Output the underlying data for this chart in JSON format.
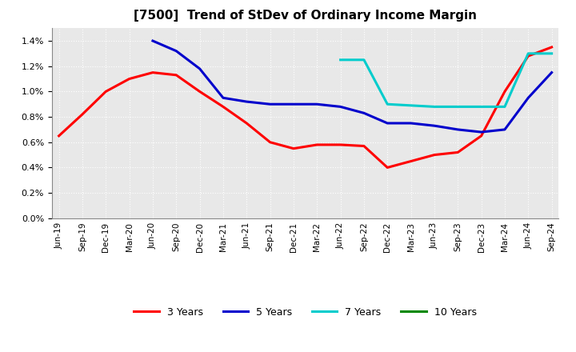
{
  "title": "[7500]  Trend of StDev of Ordinary Income Margin",
  "background_color": "#ffffff",
  "plot_bg_color": "#e8e8e8",
  "grid_color": "#ffffff",
  "ylim": [
    0.0,
    0.015
  ],
  "yticks": [
    0.0,
    0.002,
    0.004,
    0.006,
    0.008,
    0.01,
    0.012,
    0.014
  ],
  "x_labels": [
    "Jun-19",
    "Sep-19",
    "Dec-19",
    "Mar-20",
    "Jun-20",
    "Sep-20",
    "Dec-20",
    "Mar-21",
    "Jun-21",
    "Sep-21",
    "Dec-21",
    "Mar-22",
    "Jun-22",
    "Sep-22",
    "Dec-22",
    "Mar-23",
    "Jun-23",
    "Sep-23",
    "Dec-23",
    "Mar-24",
    "Jun-24",
    "Sep-24"
  ],
  "series_3y": {
    "label": "3 Years",
    "color": "#ff0000",
    "x": [
      0,
      1,
      2,
      3,
      4,
      5,
      6,
      7,
      8,
      9,
      10,
      11,
      12,
      13,
      14,
      15,
      16,
      17,
      18,
      19,
      20,
      21
    ],
    "y": [
      0.0065,
      0.0082,
      0.01,
      0.011,
      0.0115,
      0.0113,
      0.01,
      0.0088,
      0.0075,
      0.006,
      0.0055,
      0.0058,
      0.0058,
      0.0057,
      0.004,
      0.0045,
      0.005,
      0.0052,
      0.0065,
      0.01,
      0.0128,
      0.0135
    ]
  },
  "series_5y": {
    "label": "5 Years",
    "color": "#0000cc",
    "x": [
      4,
      5,
      6,
      7,
      8,
      9,
      10,
      11,
      12,
      13,
      14,
      15,
      16,
      17,
      18,
      19,
      20,
      21
    ],
    "y": [
      0.014,
      0.0132,
      0.0118,
      0.0095,
      0.0092,
      0.009,
      0.009,
      0.009,
      0.0088,
      0.0083,
      0.0075,
      0.0075,
      0.0073,
      0.007,
      0.0068,
      0.007,
      0.0095,
      0.0115
    ]
  },
  "series_7y": {
    "label": "7 Years",
    "color": "#00cccc",
    "x": [
      12,
      13,
      14,
      15,
      16,
      17,
      18,
      19,
      20,
      21
    ],
    "y": [
      0.0125,
      0.0125,
      0.009,
      0.0089,
      0.0088,
      0.0088,
      0.0088,
      0.0088,
      0.013,
      0.013
    ]
  },
  "series_10y": {
    "label": "10 Years",
    "color": "#008800",
    "x": [],
    "y": []
  },
  "linewidth": 2.2
}
